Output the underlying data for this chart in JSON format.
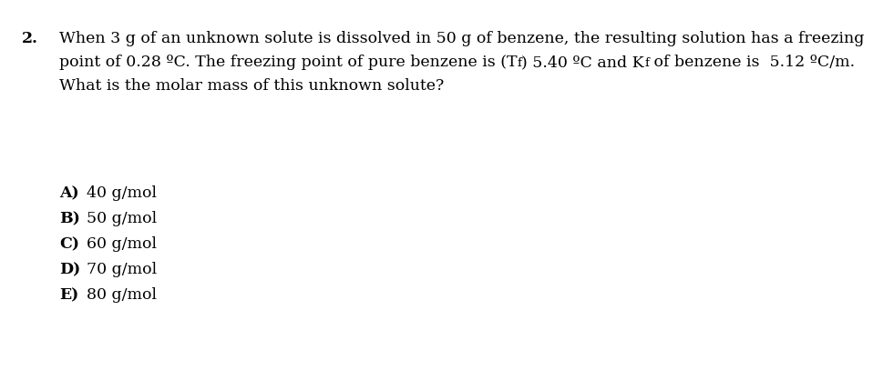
{
  "background_color": "#ffffff",
  "text_color": "#000000",
  "font_family": "serif",
  "font_size": 12.5,
  "q_num": "2.",
  "line1": "When 3 g of an unknown solute is dissolved in 50 g of benzene, the resulting solution has a freezing",
  "line2a": "point of 0.28 ºC. The freezing point of pure benzene is (T",
  "line2_sub1": "f",
  "line2b": ") 5.40 ºC and K",
  "line2_sub2": "f",
  "line2c": " of benzene is  5.12 ºC/m.",
  "line3": "What is the molar mass of this unknown solute?",
  "options": [
    {
      "label": "A)",
      "text": "40 g/mol"
    },
    {
      "label": "B)",
      "text": "50 g/mol"
    },
    {
      "label": "C)",
      "text": "60 g/mol"
    },
    {
      "label": "D)",
      "text": "70 g/mol"
    },
    {
      "label": "E)",
      "text": "80 g/mol"
    }
  ]
}
